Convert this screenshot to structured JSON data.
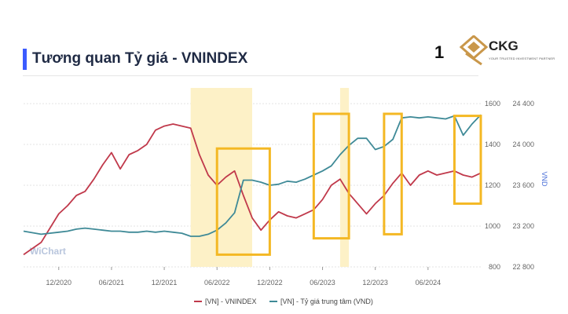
{
  "header": {
    "title": "Tương quan Tỷ giá - VNINDEX",
    "page_number": "1",
    "logo_text": "CKG",
    "logo_tagline": "YOUR TRUSTED INVESTMENT PARTNER"
  },
  "colors": {
    "vnindex": "#c0394b",
    "usd": "#3f8a97",
    "highlight_fill": "#fdf1c7",
    "box_stroke": "#f4b824",
    "title_bar": "#3b5bff"
  },
  "chart_data": {
    "type": "line",
    "title": "Tương quan Tỷ giá - VNINDEX",
    "watermark": "WiChart",
    "x_ticks": [
      "12/2020",
      "06/2021",
      "12/2021",
      "06/2022",
      "12/2022",
      "06/2023",
      "12/2023",
      "06/2024"
    ],
    "x_range": [
      "2020-08",
      "2024-12"
    ],
    "y_left": {
      "label": "",
      "ticks": [
        "800",
        "1000",
        "1200",
        "1400",
        "1600"
      ],
      "range": [
        800,
        1600
      ]
    },
    "y_right": {
      "label": "VND",
      "ticks": [
        "22 800",
        "23 200",
        "23 600",
        "24 000",
        "24 400"
      ],
      "range": [
        22800,
        24400
      ]
    },
    "legend": {
      "position": "bottom-center"
    },
    "series": [
      {
        "name": "[VN] - VNINDEX",
        "axis": "left",
        "x": [
          "2020-08",
          "2020-10",
          "2020-12",
          "2021-01",
          "2021-02",
          "2021-03",
          "2021-04",
          "2021-05",
          "2021-06",
          "2021-07",
          "2021-08",
          "2021-09",
          "2021-10",
          "2021-11",
          "2021-12",
          "2022-01",
          "2022-02",
          "2022-03",
          "2022-04",
          "2022-05",
          "2022-06",
          "2022-07",
          "2022-08",
          "2022-09",
          "2022-10",
          "2022-11",
          "2022-12",
          "2023-01",
          "2023-02",
          "2023-03",
          "2023-04",
          "2023-05",
          "2023-06",
          "2023-07",
          "2023-08",
          "2023-09",
          "2023-10",
          "2023-11",
          "2023-12",
          "2024-01",
          "2024-02",
          "2024-03",
          "2024-04",
          "2024-05",
          "2024-06",
          "2024-07",
          "2024-08",
          "2024-09",
          "2024-10",
          "2024-11",
          "2024-12"
        ],
        "y": [
          860,
          920,
          1060,
          1100,
          1150,
          1170,
          1230,
          1300,
          1360,
          1280,
          1350,
          1370,
          1400,
          1470,
          1490,
          1500,
          1490,
          1480,
          1350,
          1250,
          1200,
          1240,
          1270,
          1150,
          1040,
          980,
          1030,
          1070,
          1050,
          1040,
          1060,
          1080,
          1130,
          1200,
          1230,
          1160,
          1110,
          1060,
          1110,
          1150,
          1210,
          1260,
          1200,
          1250,
          1270,
          1250,
          1260,
          1270,
          1250,
          1240,
          1260
        ]
      },
      {
        "name": "[VN] - Tỷ giá trung tâm (VND)",
        "axis": "right",
        "x": [
          "2020-08",
          "2020-10",
          "2020-12",
          "2021-01",
          "2021-02",
          "2021-03",
          "2021-04",
          "2021-05",
          "2021-06",
          "2021-07",
          "2021-08",
          "2021-09",
          "2021-10",
          "2021-11",
          "2021-12",
          "2022-01",
          "2022-02",
          "2022-03",
          "2022-04",
          "2022-05",
          "2022-06",
          "2022-07",
          "2022-08",
          "2022-09",
          "2022-10",
          "2022-11",
          "2022-12",
          "2023-01",
          "2023-02",
          "2023-03",
          "2023-04",
          "2023-05",
          "2023-06",
          "2023-07",
          "2023-08",
          "2023-09",
          "2023-10",
          "2023-11",
          "2023-12",
          "2024-01",
          "2024-02",
          "2024-03",
          "2024-04",
          "2024-05",
          "2024-06",
          "2024-07",
          "2024-08",
          "2024-09",
          "2024-10",
          "2024-11",
          "2024-12"
        ],
        "y": [
          23150,
          23120,
          23140,
          23150,
          23170,
          23180,
          23170,
          23160,
          23150,
          23150,
          23140,
          23140,
          23150,
          23140,
          23150,
          23140,
          23130,
          23100,
          23100,
          23120,
          23160,
          23230,
          23330,
          23650,
          23650,
          23630,
          23600,
          23610,
          23640,
          23630,
          23660,
          23700,
          23740,
          23790,
          23900,
          23990,
          24060,
          24060,
          23950,
          23980,
          24050,
          24260,
          24270,
          24260,
          24270,
          24260,
          24250,
          24280,
          24090,
          24200,
          24290
        ]
      }
    ],
    "highlight_bands": [
      {
        "from": "2022-03",
        "to": "2022-10"
      },
      {
        "from": "2023-08",
        "to": "2023-09"
      }
    ],
    "annotation_boxes": [
      {
        "from": "2022-06",
        "to": "2022-12",
        "y_from": 860,
        "y_to": 1380
      },
      {
        "from": "2023-05",
        "to": "2023-09",
        "y_from": 940,
        "y_to": 1550
      },
      {
        "from": "2024-01",
        "to": "2024-03",
        "y_from": 960,
        "y_to": 1550
      },
      {
        "from": "2024-09",
        "to": "2024-12",
        "y_from": 1110,
        "y_to": 1540
      }
    ]
  }
}
